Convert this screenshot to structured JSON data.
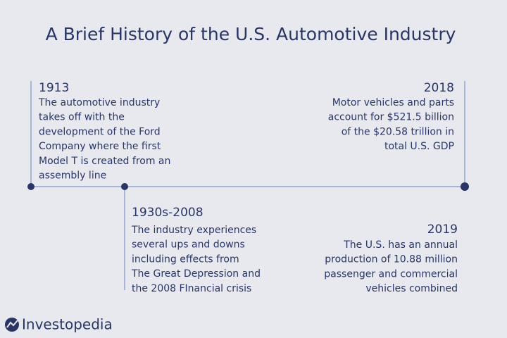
{
  "title": "A Brief History of the U.S. Automotive Industry",
  "events": [
    {
      "year": "1913",
      "lines": [
        "The automotive industry",
        "takes off with the",
        "development of the Ford",
        "Company where the first",
        "Model T is created from an",
        "assembly line"
      ]
    },
    {
      "year": "1930s-2008",
      "lines": [
        "The industry experiences",
        "several ups and downs",
        "including effects from",
        "The Great Depression and",
        "the 2008 FInancial crisis"
      ]
    },
    {
      "year": "2018",
      "lines": [
        "Motor vehicles and parts",
        "account for $521.5 billion",
        "of the $20.58 trillion in",
        "total U.S. GDP"
      ]
    },
    {
      "year": "2019",
      "lines": [
        "The U.S. has an annual",
        "production of 10.88 million",
        "passenger and commercial",
        "vehicles combined"
      ]
    }
  ],
  "brand": "Investopedia"
}
